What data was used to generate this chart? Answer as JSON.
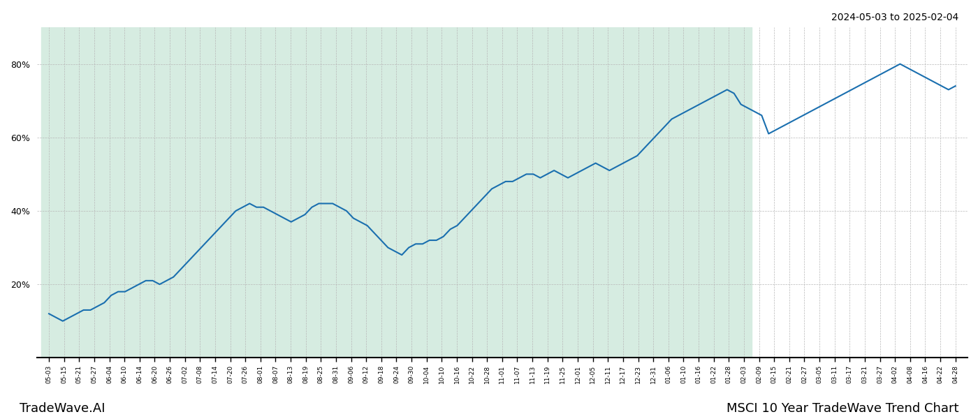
{
  "title_top_right": "2024-05-03 to 2025-02-04",
  "title_bottom_right": "MSCI 10 Year TradeWave Trend Chart",
  "title_bottom_left": "TradeWave.AI",
  "background_color": "#ffffff",
  "shaded_region_color": "#d6ece1",
  "line_color": "#1a6faf",
  "line_width": 1.5,
  "ylim": [
    0,
    90
  ],
  "yticks": [
    20,
    40,
    60,
    80
  ],
  "x_labels": [
    "05-03",
    "05-15",
    "05-21",
    "05-27",
    "06-04",
    "06-10",
    "06-14",
    "06-20",
    "06-26",
    "07-02",
    "07-08",
    "07-14",
    "07-20",
    "07-26",
    "08-01",
    "08-07",
    "08-13",
    "08-19",
    "08-25",
    "08-31",
    "09-06",
    "09-12",
    "09-18",
    "09-24",
    "09-30",
    "10-04",
    "10-10",
    "10-16",
    "10-22",
    "10-28",
    "11-01",
    "11-07",
    "11-13",
    "11-19",
    "11-25",
    "12-01",
    "12-05",
    "12-11",
    "12-17",
    "12-23",
    "12-31",
    "01-06",
    "01-10",
    "01-16",
    "01-22",
    "01-28",
    "02-03",
    "02-09",
    "02-15",
    "02-21",
    "02-27",
    "03-05",
    "03-11",
    "03-17",
    "03-21",
    "03-27",
    "04-02",
    "04-08",
    "04-16",
    "04-22",
    "04-28"
  ],
  "shaded_x_start_label": "05-03",
  "shaded_x_end_label": "02-03",
  "values": [
    12,
    11,
    10,
    11,
    12,
    13,
    13,
    14,
    15,
    17,
    18,
    18,
    19,
    20,
    21,
    21,
    20,
    21,
    22,
    24,
    26,
    28,
    30,
    32,
    34,
    36,
    38,
    40,
    41,
    42,
    41,
    41,
    40,
    39,
    38,
    37,
    38,
    39,
    41,
    42,
    42,
    42,
    41,
    40,
    38,
    37,
    36,
    34,
    32,
    30,
    29,
    28,
    30,
    31,
    31,
    32,
    32,
    33,
    35,
    36,
    38,
    40,
    42,
    44,
    46,
    47,
    48,
    48,
    49,
    50,
    50,
    49,
    50,
    51,
    50,
    49,
    50,
    51,
    52,
    53,
    52,
    51,
    52,
    53,
    54,
    55,
    57,
    59,
    61,
    63,
    65,
    66,
    67,
    68,
    69,
    70,
    71,
    72,
    73,
    72,
    69,
    68,
    67,
    66,
    61,
    62,
    63,
    64,
    65,
    66,
    67,
    68,
    69,
    70,
    71,
    72,
    73,
    74,
    75,
    76,
    77,
    78,
    79,
    80,
    79,
    78,
    77,
    76,
    75,
    74,
    73,
    74
  ]
}
